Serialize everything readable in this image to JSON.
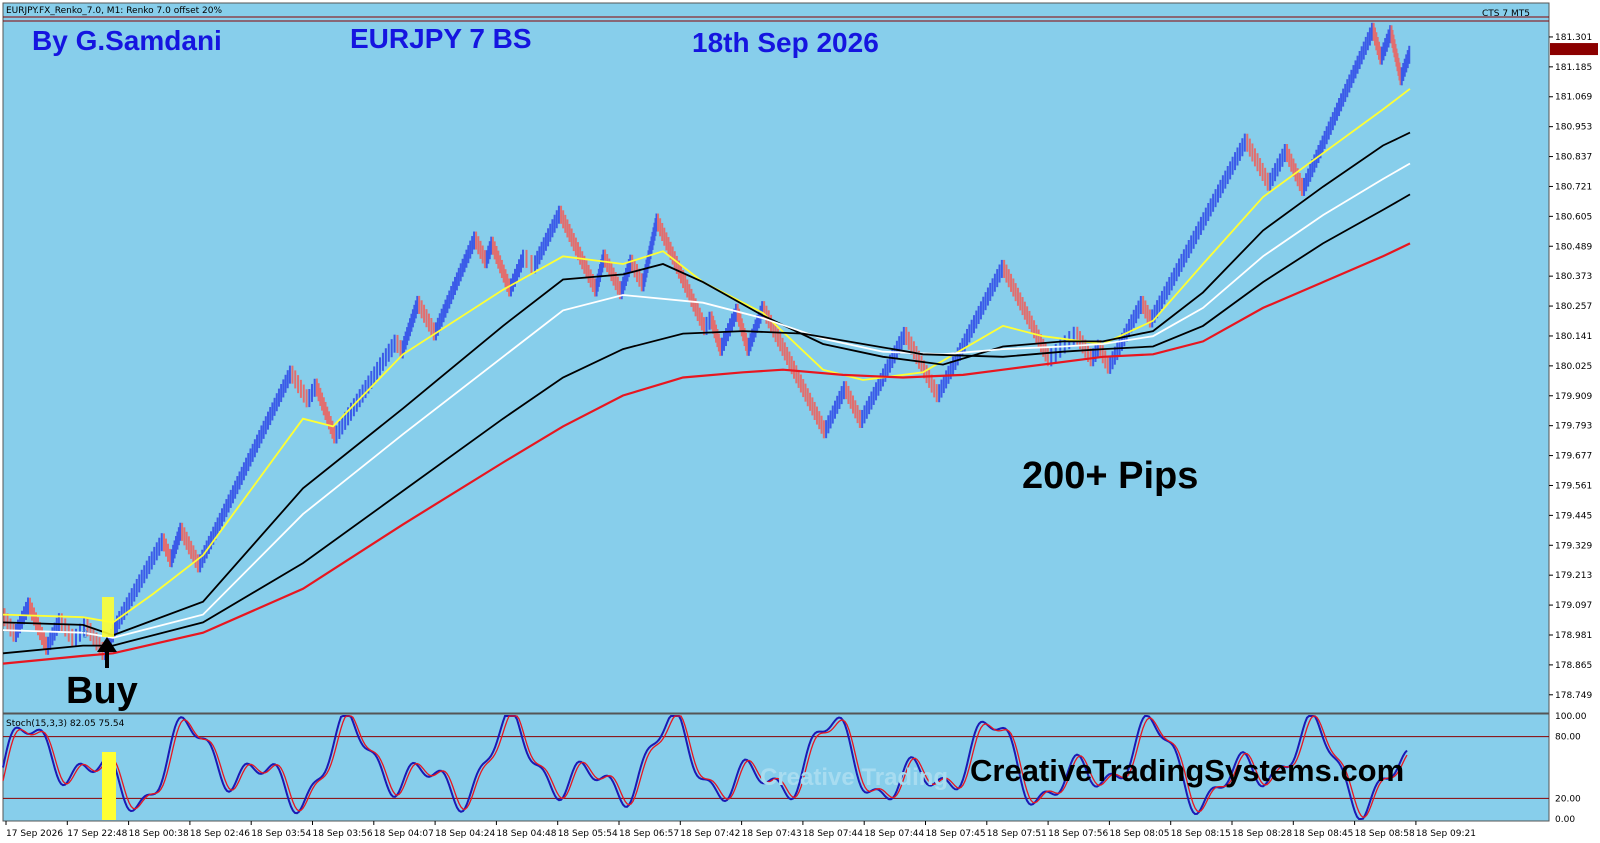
{
  "window": {
    "header": "EURJPY.FX_Renko_7.0, M1:  Renko 7.0 offset 20%",
    "badge": "CTS 7 MT5"
  },
  "annotations": {
    "author": "By G.Samdani",
    "system": "EURJPY 7 BS",
    "date": "18th Sep 2026",
    "pips": "200+ Pips",
    "buy": "Buy",
    "website": "CreativeTradingSystems.com",
    "watermark": "Creative Trading"
  },
  "colors": {
    "background": "#87CEEB",
    "up_brick": "#3B5BE8",
    "down_brick": "#E26E6E",
    "ma_yellow": "#FFFF33",
    "ma_black": "#000000",
    "ma_white": "#FFFFFF",
    "ma_red": "#E8161F",
    "stoch_main": "#1A1AB5",
    "stoch_signal": "#E8161F",
    "level_line": "#8B0000",
    "buy_highlight": "#FFFF33",
    "website_text": "#000000"
  },
  "chart_data": {
    "type": "line",
    "price_axis": {
      "ticks": [
        "181.301",
        "181.185",
        "181.069",
        "180.953",
        "180.837",
        "180.721",
        "180.605",
        "180.489",
        "180.373",
        "180.257",
        "180.141",
        "180.025",
        "179.909",
        "179.793",
        "179.677",
        "179.561",
        "179.445",
        "179.329",
        "179.213",
        "179.097",
        "178.981",
        "178.865",
        "178.749"
      ],
      "ylim": [
        178.69,
        181.39
      ],
      "current_price": "181.254"
    },
    "time_axis": {
      "ticks": [
        "17 Sep 2026",
        "17 Sep 22:48",
        "18 Sep 00:38",
        "18 Sep 02:46",
        "18 Sep 03:54",
        "18 Sep 03:56",
        "18 Sep 04:07",
        "18 Sep 04:24",
        "18 Sep 04:48",
        "18 Sep 05:54",
        "18 Sep 06:57",
        "18 Sep 07:42",
        "18 Sep 07:43",
        "18 Sep 07:44",
        "18 Sep 07:44",
        "18 Sep 07:45",
        "18 Sep 07:51",
        "18 Sep 07:56",
        "18 Sep 08:05",
        "18 Sep 08:15",
        "18 Sep 08:28",
        "18 Sep 08:45",
        "18 Sep 08:58",
        "18 Sep 09:21"
      ]
    },
    "renko": {
      "brick_size": 0.07,
      "swings": [
        [
          0,
          179.06
        ],
        [
          12,
          178.98
        ],
        [
          26,
          179.1
        ],
        [
          44,
          178.93
        ],
        [
          57,
          179.04
        ],
        [
          71,
          178.96
        ],
        [
          83,
          179.02
        ],
        [
          101,
          178.91
        ],
        [
          115,
          179.03
        ],
        [
          160,
          179.35
        ],
        [
          168,
          179.27
        ],
        [
          178,
          179.39
        ],
        [
          196,
          179.25
        ],
        [
          288,
          180.0
        ],
        [
          305,
          179.89
        ],
        [
          313,
          179.95
        ],
        [
          332,
          179.75
        ],
        [
          393,
          180.12
        ],
        [
          399,
          180.08
        ],
        [
          415,
          180.27
        ],
        [
          432,
          180.15
        ],
        [
          472,
          180.52
        ],
        [
          483,
          180.43
        ],
        [
          489,
          180.5
        ],
        [
          507,
          180.32
        ],
        [
          521,
          180.45
        ],
        [
          531,
          180.41
        ],
        [
          557,
          180.62
        ],
        [
          593,
          180.32
        ],
        [
          601,
          180.45
        ],
        [
          618,
          180.31
        ],
        [
          628,
          180.43
        ],
        [
          640,
          180.34
        ],
        [
          654,
          180.59
        ],
        [
          702,
          180.17
        ],
        [
          708,
          180.21
        ],
        [
          718,
          180.09
        ],
        [
          734,
          180.24
        ],
        [
          745,
          180.09
        ],
        [
          760,
          180.25
        ],
        [
          822,
          179.77
        ],
        [
          842,
          179.94
        ],
        [
          858,
          179.81
        ],
        [
          902,
          180.15
        ],
        [
          935,
          179.91
        ],
        [
          1000,
          180.41
        ],
        [
          1046,
          180.05
        ],
        [
          1073,
          180.15
        ],
        [
          1089,
          180.05
        ],
        [
          1096,
          180.1
        ],
        [
          1106,
          180.02
        ],
        [
          1139,
          180.27
        ],
        [
          1148,
          180.2
        ],
        [
          1243,
          180.9
        ],
        [
          1266,
          180.73
        ],
        [
          1283,
          180.86
        ],
        [
          1300,
          180.71
        ],
        [
          1370,
          181.33
        ],
        [
          1378,
          181.22
        ],
        [
          1388,
          181.32
        ],
        [
          1398,
          181.14
        ],
        [
          1407,
          181.24
        ]
      ]
    },
    "series": [
      {
        "color": "yellow",
        "x": [
          0,
          80,
          110,
          150,
          200,
          300,
          330,
          400,
          500,
          560,
          620,
          660,
          700,
          760,
          820,
          860,
          920,
          1000,
          1040,
          1100,
          1150,
          1200,
          1260,
          1320,
          1380,
          1407
        ],
        "values": [
          179.06,
          179.05,
          179.03,
          179.14,
          179.29,
          179.82,
          179.79,
          180.07,
          180.32,
          180.45,
          180.42,
          180.47,
          180.35,
          180.23,
          180.01,
          179.97,
          180.0,
          180.18,
          180.14,
          180.11,
          180.2,
          180.42,
          180.68,
          180.85,
          181.02,
          181.1
        ]
      },
      {
        "color": "black",
        "x": [
          0,
          80,
          110,
          200,
          300,
          400,
          500,
          560,
          620,
          660,
          700,
          760,
          820,
          880,
          940,
          1000,
          1060,
          1100,
          1150,
          1200,
          1260,
          1320,
          1380,
          1407
        ],
        "values": [
          179.03,
          179.02,
          178.98,
          179.11,
          179.55,
          179.86,
          180.18,
          180.36,
          180.38,
          180.42,
          180.35,
          180.22,
          180.11,
          180.06,
          180.03,
          180.1,
          180.12,
          180.12,
          180.16,
          180.31,
          180.55,
          180.72,
          180.88,
          180.93
        ]
      },
      {
        "color": "white",
        "x": [
          0,
          80,
          110,
          200,
          300,
          400,
          500,
          560,
          620,
          700,
          760,
          820,
          880,
          940,
          1000,
          1060,
          1100,
          1150,
          1200,
          1260,
          1320,
          1380,
          1407
        ],
        "values": [
          179.0,
          178.99,
          178.97,
          179.06,
          179.45,
          179.76,
          180.06,
          180.24,
          180.3,
          180.27,
          180.21,
          180.13,
          180.08,
          180.07,
          180.09,
          180.1,
          180.11,
          180.14,
          180.25,
          180.45,
          180.61,
          180.75,
          180.81
        ]
      },
      {
        "color": "black",
        "x": [
          0,
          80,
          110,
          200,
          300,
          400,
          500,
          560,
          620,
          680,
          740,
          800,
          860,
          920,
          1000,
          1060,
          1100,
          1150,
          1200,
          1260,
          1320,
          1380,
          1407
        ],
        "values": [
          178.91,
          178.94,
          178.94,
          179.03,
          179.26,
          179.54,
          179.82,
          179.98,
          180.09,
          180.15,
          180.16,
          180.15,
          180.11,
          180.07,
          180.06,
          180.08,
          180.09,
          180.1,
          180.18,
          180.35,
          180.5,
          180.63,
          180.69
        ]
      },
      {
        "color": "red",
        "x": [
          0,
          80,
          110,
          200,
          300,
          400,
          500,
          560,
          620,
          680,
          740,
          780,
          840,
          900,
          960,
          1000,
          1100,
          1150,
          1200,
          1260,
          1320,
          1380,
          1407
        ],
        "values": [
          178.87,
          178.9,
          178.91,
          178.99,
          179.16,
          179.41,
          179.65,
          179.79,
          179.91,
          179.98,
          180.0,
          180.01,
          179.99,
          179.98,
          179.99,
          180.01,
          180.06,
          180.07,
          180.12,
          180.25,
          180.35,
          180.45,
          180.5
        ]
      }
    ],
    "stochastic": {
      "label": "Stoch(15,3,3) 82.05 75.54",
      "levels": [
        80,
        20
      ],
      "axis_ticks": [
        "100.00",
        "80.00",
        "20.00",
        "0.00"
      ],
      "ylim": [
        0,
        100
      ]
    }
  }
}
